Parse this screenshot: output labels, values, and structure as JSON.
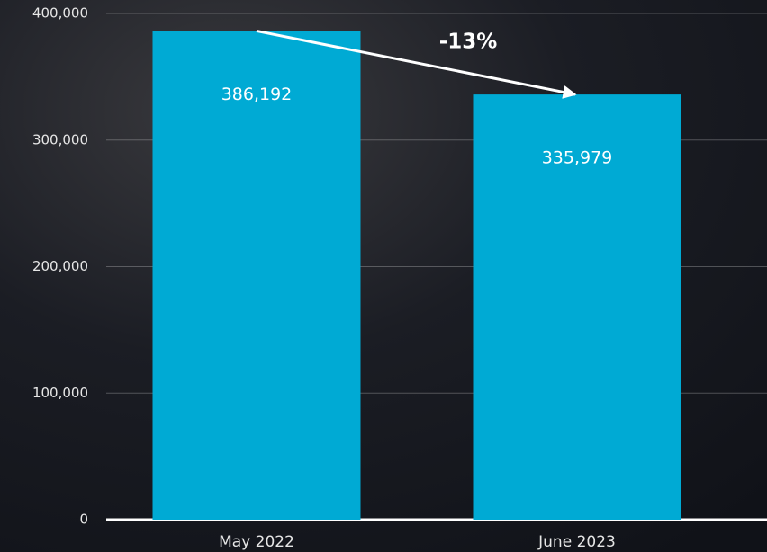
{
  "chart_data": {
    "type": "bar",
    "categories": [
      "May 2022",
      "June 2023"
    ],
    "values": [
      386192,
      335979
    ],
    "value_labels": [
      "386,192",
      "335,979"
    ],
    "color": "#00aad4",
    "ylim": [
      0,
      400000
    ],
    "yticks": [
      0,
      {
        "value": 100000,
        "label": "100,000"
      },
      {
        "value": 200000,
        "label": "200,000"
      },
      {
        "value": 300000,
        "label": "300,000"
      },
      {
        "value": 400000,
        "label": "400,000"
      }
    ],
    "grid": true,
    "annotation": "-13%"
  }
}
